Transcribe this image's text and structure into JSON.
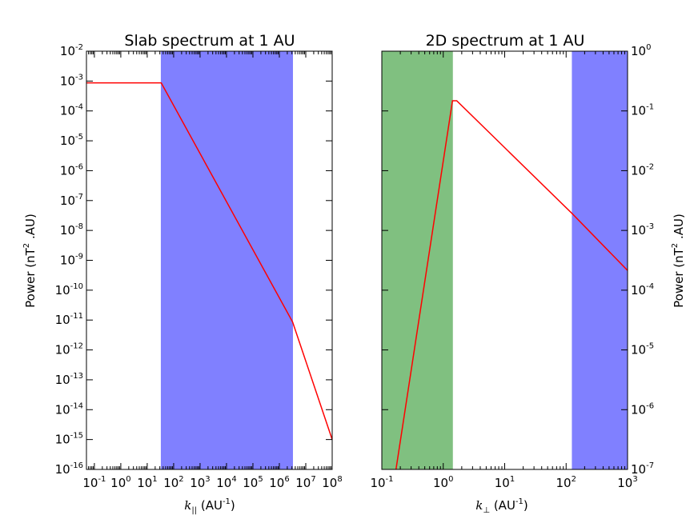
{
  "chart_data": [
    {
      "type": "line",
      "title": "Slab spectrum at 1 AU",
      "xlabel_var": "k",
      "xlabel_sub": "||",
      "xlabel_unit": "(AU",
      "xlabel_unit_exp": "-1",
      "xlabel_close": ")",
      "ylabel": "Power (nT",
      "ylabel_exp": "2",
      "ylabel_tail": " .AU)",
      "xscale": "log",
      "yscale": "log",
      "xlim_exp": [
        -1.3,
        8
      ],
      "ylim_exp": [
        -16,
        -2
      ],
      "x_tick_base": "10",
      "x_tick_exps": [
        "-1",
        "0",
        "1",
        "2",
        "3",
        "4",
        "5",
        "6",
        "7",
        "8"
      ],
      "y_tick_base": "10",
      "y_tick_exps": [
        "-2",
        "-3",
        "-4",
        "-5",
        "-6",
        "-7",
        "-8",
        "-9",
        "-10",
        "-11",
        "-12",
        "-13",
        "-14",
        "-15",
        "-16"
      ],
      "shaded_regions": [
        {
          "name": "inertial-range",
          "x_from_exp": 1.53,
          "x_to_exp": 6.5,
          "color": "#8080ff"
        }
      ],
      "series": [
        {
          "name": "slab-spectrum",
          "color": "#ff0000",
          "x_exp": [
            -1.3,
            1.53,
            6.5,
            8.0
          ],
          "y_exp": [
            -3.06,
            -3.06,
            -11.06,
            -15.0
          ]
        }
      ]
    },
    {
      "type": "line",
      "title": "2D spectrum at 1 AU",
      "xlabel_var": "k",
      "xlabel_sub": "⊥",
      "xlabel_unit": "(AU",
      "xlabel_unit_exp": "-1",
      "xlabel_close": ")",
      "ylabel": "Power (nT",
      "ylabel_exp": "2",
      "ylabel_tail": " .AU)",
      "xscale": "log",
      "yscale": "log",
      "xlim_exp": [
        -1,
        3
      ],
      "ylim_exp": [
        -7,
        0
      ],
      "x_tick_base": "10",
      "x_tick_exps": [
        "-1",
        "0",
        "1",
        "2",
        "3"
      ],
      "y_tick_base": "10",
      "y_tick_exps": [
        "0",
        "-1",
        "-2",
        "-3",
        "-4",
        "-5",
        "-6",
        "-7"
      ],
      "shaded_regions": [
        {
          "name": "energy-range",
          "x_from_exp": -1,
          "x_to_exp": 0.15,
          "color": "#80c080"
        },
        {
          "name": "dissipation-range",
          "x_from_exp": 2.1,
          "x_to_exp": 3,
          "color": "#8080ff"
        }
      ],
      "series": [
        {
          "name": "2d-spectrum",
          "color": "#ff0000",
          "x_exp": [
            -0.77,
            0.15,
            0.22,
            2.1,
            3.0
          ],
          "y_exp": [
            -7.0,
            -0.83,
            -0.83,
            -2.72,
            -3.67
          ]
        }
      ]
    }
  ]
}
